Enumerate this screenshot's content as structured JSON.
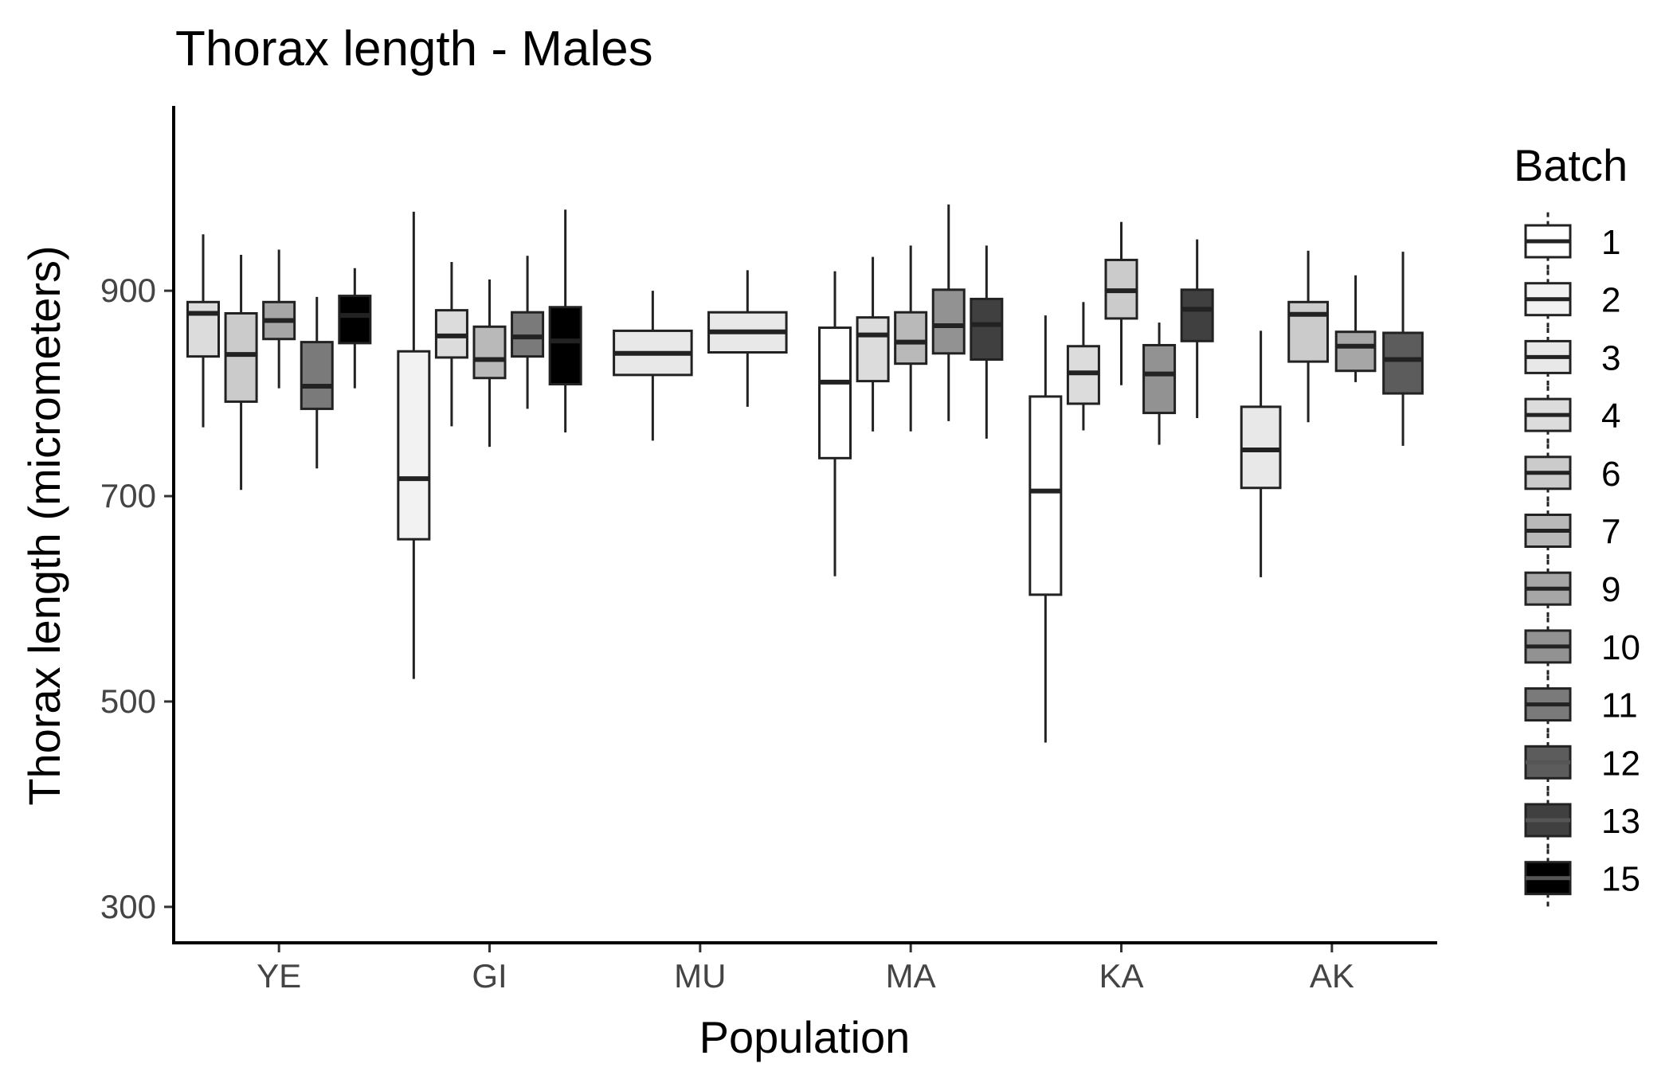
{
  "chart_data": {
    "type": "boxplot",
    "title": "Thorax length - Males",
    "xlabel": "Population",
    "ylabel": "Thorax length (micrometers)",
    "ylim": [
      265,
      1080
    ],
    "yticks": [
      300,
      500,
      700,
      900
    ],
    "categories": [
      "YE",
      "GI",
      "MU",
      "MA",
      "KA",
      "AK"
    ],
    "legend": {
      "title": "Batch",
      "position": "right",
      "entries": [
        {
          "label": "1",
          "color": "#ffffff"
        },
        {
          "label": "2",
          "color": "#f2f2f2"
        },
        {
          "label": "3",
          "color": "#e8e8e8"
        },
        {
          "label": "4",
          "color": "#dcdcdc"
        },
        {
          "label": "6",
          "color": "#cbcbcb"
        },
        {
          "label": "7",
          "color": "#b9b9b9"
        },
        {
          "label": "9",
          "color": "#a6a6a6"
        },
        {
          "label": "10",
          "color": "#929292"
        },
        {
          "label": "11",
          "color": "#7a7a7a"
        },
        {
          "label": "12",
          "color": "#5c5c5c"
        },
        {
          "label": "13",
          "color": "#404040"
        },
        {
          "label": "15",
          "color": "#000000"
        }
      ]
    },
    "boxes": [
      {
        "population": "YE",
        "batch": "4",
        "lower_whisker": 767,
        "q1": 836,
        "median": 878,
        "q3": 889,
        "upper_whisker": 955
      },
      {
        "population": "YE",
        "batch": "6",
        "lower_whisker": 706,
        "q1": 792,
        "median": 838,
        "q3": 878,
        "upper_whisker": 935
      },
      {
        "population": "YE",
        "batch": "9",
        "lower_whisker": 805,
        "q1": 853,
        "median": 871,
        "q3": 889,
        "upper_whisker": 940
      },
      {
        "population": "YE",
        "batch": "11",
        "lower_whisker": 727,
        "q1": 785,
        "median": 807,
        "q3": 850,
        "upper_whisker": 894
      },
      {
        "population": "YE",
        "batch": "15",
        "lower_whisker": 805,
        "q1": 849,
        "median": 876,
        "q3": 895,
        "upper_whisker": 922
      },
      {
        "population": "GI",
        "batch": "2",
        "lower_whisker": 522,
        "q1": 658,
        "median": 717,
        "q3": 841,
        "upper_whisker": 977
      },
      {
        "population": "GI",
        "batch": "4",
        "lower_whisker": 768,
        "q1": 835,
        "median": 856,
        "q3": 881,
        "upper_whisker": 928
      },
      {
        "population": "GI",
        "batch": "7",
        "lower_whisker": 748,
        "q1": 815,
        "median": 833,
        "q3": 865,
        "upper_whisker": 911
      },
      {
        "population": "GI",
        "batch": "11",
        "lower_whisker": 785,
        "q1": 836,
        "median": 855,
        "q3": 879,
        "upper_whisker": 934
      },
      {
        "population": "GI",
        "batch": "15",
        "lower_whisker": 762,
        "q1": 809,
        "median": 851,
        "q3": 884,
        "upper_whisker": 979
      },
      {
        "population": "MU",
        "batch": "3",
        "lower_whisker": 754,
        "q1": 818,
        "median": 839,
        "q3": 861,
        "upper_whisker": 900
      },
      {
        "population": "MU",
        "batch": "3",
        "lower_whisker": 787,
        "q1": 840,
        "median": 860,
        "q3": 879,
        "upper_whisker": 920
      },
      {
        "population": "MA",
        "batch": "1",
        "lower_whisker": 622,
        "q1": 737,
        "median": 811,
        "q3": 864,
        "upper_whisker": 919
      },
      {
        "population": "MA",
        "batch": "4",
        "lower_whisker": 763,
        "q1": 812,
        "median": 857,
        "q3": 874,
        "upper_whisker": 933
      },
      {
        "population": "MA",
        "batch": "7",
        "lower_whisker": 763,
        "q1": 829,
        "median": 850,
        "q3": 879,
        "upper_whisker": 944
      },
      {
        "population": "MA",
        "batch": "10",
        "lower_whisker": 773,
        "q1": 839,
        "median": 866,
        "q3": 901,
        "upper_whisker": 984
      },
      {
        "population": "MA",
        "batch": "13",
        "lower_whisker": 756,
        "q1": 833,
        "median": 867,
        "q3": 892,
        "upper_whisker": 944
      },
      {
        "population": "KA",
        "batch": "1",
        "lower_whisker": 460,
        "q1": 604,
        "median": 705,
        "q3": 797,
        "upper_whisker": 876
      },
      {
        "population": "KA",
        "batch": "4",
        "lower_whisker": 764,
        "q1": 790,
        "median": 820,
        "q3": 846,
        "upper_whisker": 889
      },
      {
        "population": "KA",
        "batch": "6",
        "lower_whisker": 808,
        "q1": 873,
        "median": 900,
        "q3": 930,
        "upper_whisker": 967
      },
      {
        "population": "KA",
        "batch": "10",
        "lower_whisker": 750,
        "q1": 781,
        "median": 819,
        "q3": 847,
        "upper_whisker": 869
      },
      {
        "population": "KA",
        "batch": "13",
        "lower_whisker": 776,
        "q1": 851,
        "median": 882,
        "q3": 901,
        "upper_whisker": 950
      },
      {
        "population": "AK",
        "batch": "3",
        "lower_whisker": 621,
        "q1": 708,
        "median": 745,
        "q3": 787,
        "upper_whisker": 861
      },
      {
        "population": "AK",
        "batch": "6",
        "lower_whisker": 772,
        "q1": 831,
        "median": 877,
        "q3": 889,
        "upper_whisker": 939
      },
      {
        "population": "AK",
        "batch": "9",
        "lower_whisker": 811,
        "q1": 822,
        "median": 846,
        "q3": 860,
        "upper_whisker": 915
      },
      {
        "population": "AK",
        "batch": "12",
        "lower_whisker": 749,
        "q1": 800,
        "median": 833,
        "q3": 859,
        "upper_whisker": 938
      }
    ]
  }
}
